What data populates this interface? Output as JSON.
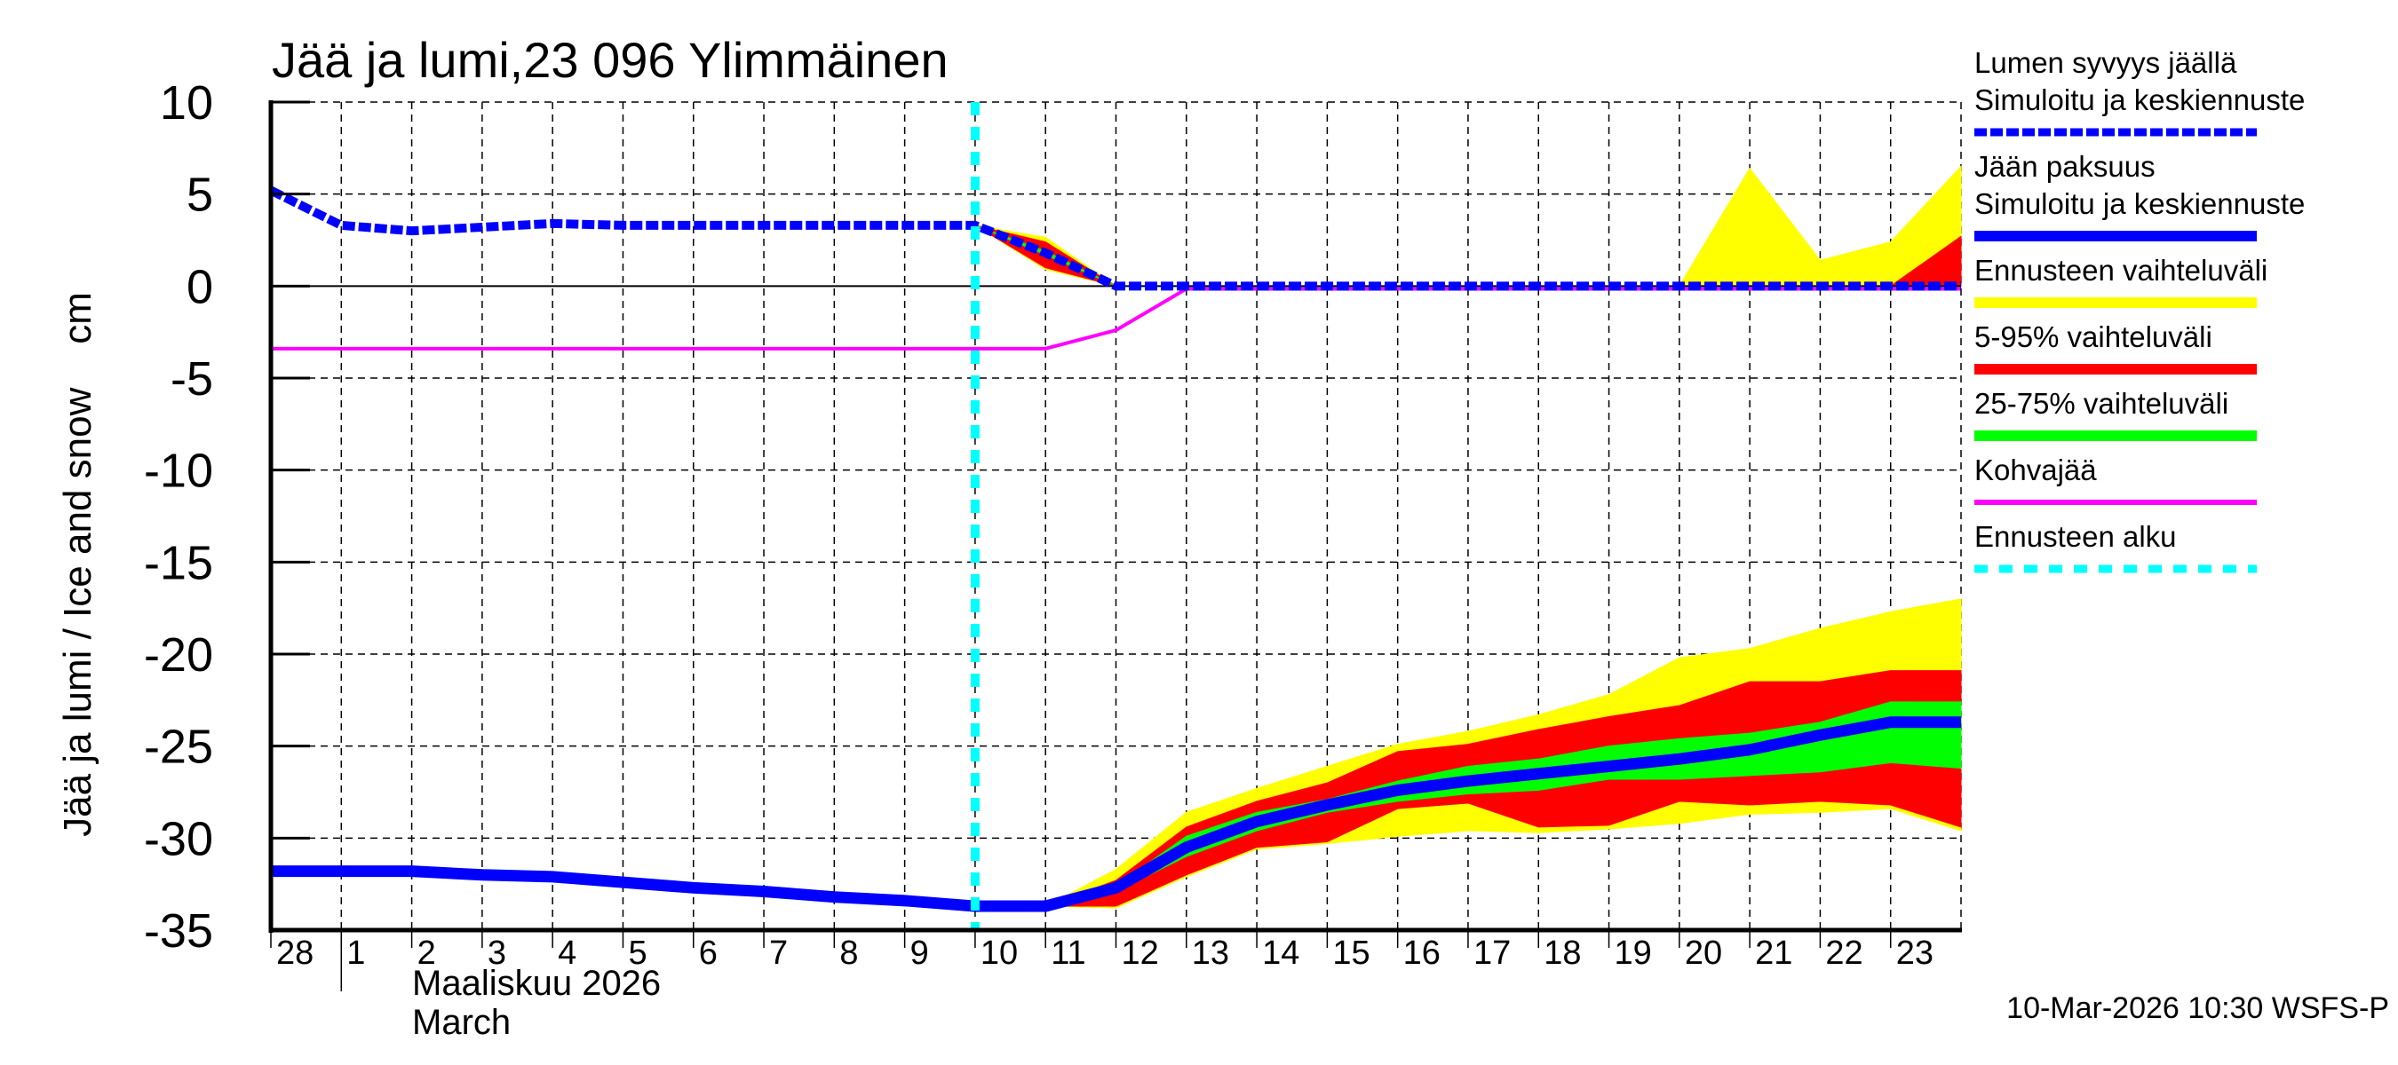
{
  "chart_data": {
    "type": "area",
    "title": "Jää ja lumi,23 096 Ylimmäinen",
    "ylabel": "Jää ja lumi / Ice and snow    cm",
    "xlabel_fi": "Maaliskuu 2026",
    "xlabel_en": "March",
    "ylim": [
      -35,
      10
    ],
    "yticks": [
      10,
      5,
      0,
      -5,
      -10,
      -15,
      -20,
      -25,
      -30,
      -35
    ],
    "x_tick_labels": [
      "28",
      "1",
      "2",
      "3",
      "4",
      "5",
      "6",
      "7",
      "8",
      "9",
      "10",
      "11",
      "12",
      "13",
      "14",
      "15",
      "16",
      "17",
      "18",
      "19",
      "20",
      "21",
      "22",
      "23"
    ],
    "x_day_index_range": [
      0,
      24
    ],
    "grid": true,
    "forecast_start_day_index": 10,
    "legend_position": "right",
    "timestamp": "10-Mar-2026 10:30 WSFS-P",
    "colors": {
      "snow": "#0000ff",
      "ice": "#0000ff",
      "range_full": "#ffff00",
      "range_5_95": "#ff0000",
      "range_25_75": "#00ff00",
      "slush": "#ff00ff",
      "forecast_start": "#00ffff"
    },
    "series": [
      {
        "name": "Lumen syvyys jäällä – Simuloitu ja keskiennuste",
        "style": "dashed-thick",
        "x": [
          0,
          1,
          2,
          3,
          4,
          5,
          6,
          7,
          8,
          9,
          10,
          11,
          12,
          13,
          14,
          15,
          16,
          17,
          18,
          19,
          20,
          21,
          22,
          23,
          24
        ],
        "values": [
          5.2,
          3.3,
          3.0,
          3.2,
          3.4,
          3.3,
          3.3,
          3.3,
          3.3,
          3.3,
          3.3,
          1.8,
          0,
          0,
          0,
          0,
          0,
          0,
          0,
          0,
          0,
          0,
          0,
          0,
          0
        ]
      },
      {
        "name": "Jään paksuus – Simuloitu ja keskiennuste",
        "style": "solid-thick",
        "x": [
          0,
          1,
          2,
          3,
          4,
          5,
          6,
          7,
          8,
          9,
          10,
          11,
          12,
          13,
          14,
          15,
          16,
          17,
          18,
          19,
          20,
          21,
          22,
          23,
          24
        ],
        "values": [
          -31.8,
          -31.8,
          -31.8,
          -32.0,
          -32.1,
          -32.4,
          -32.7,
          -32.9,
          -33.2,
          -33.4,
          -33.7,
          -33.7,
          -32.7,
          -30.5,
          -29.1,
          -28.2,
          -27.4,
          -26.9,
          -26.5,
          -26.1,
          -25.7,
          -25.2,
          -24.4,
          -23.7,
          -23.7
        ]
      },
      {
        "name": "Kohvajää",
        "style": "solid",
        "x": [
          0,
          10,
          11,
          12,
          13,
          24
        ],
        "values": [
          -3.4,
          -3.4,
          -3.4,
          -2.4,
          -0.15,
          -0.15
        ]
      }
    ],
    "bands": {
      "snow": {
        "x": [
          10,
          11,
          12,
          13,
          19,
          20,
          21,
          22,
          23,
          24
        ],
        "full_lower": [
          3.3,
          0.9,
          0,
          0,
          0,
          0,
          0,
          0,
          0,
          0
        ],
        "full_upper": [
          3.3,
          2.65,
          0,
          0,
          0,
          0,
          6.4,
          1.4,
          2.4,
          6.5
        ],
        "p5_lower": [
          3.3,
          1.0,
          0,
          0,
          0,
          0,
          0,
          0,
          0,
          0
        ],
        "p95_upper": [
          3.3,
          2.4,
          0,
          0,
          0,
          0,
          0,
          0,
          0,
          2.7
        ],
        "p25_lower": [
          3.3,
          1.7,
          0,
          0,
          0,
          0,
          0,
          0,
          0,
          0
        ],
        "p75_upper": [
          3.3,
          1.9,
          0,
          0,
          0,
          0,
          0,
          0,
          0,
          0
        ]
      },
      "ice": {
        "x": [
          11,
          12,
          13,
          14,
          15,
          16,
          17,
          18,
          19,
          20,
          21,
          22,
          23,
          24
        ],
        "full_upper": [
          -33.7,
          -31.7,
          -28.6,
          -27.3,
          -26.1,
          -24.9,
          -24.2,
          -23.3,
          -22.2,
          -20.2,
          -19.7,
          -18.6,
          -17.7,
          -17.0
        ],
        "p95_upper": [
          -33.7,
          -32.3,
          -29.4,
          -28.0,
          -27.0,
          -25.3,
          -24.9,
          -24.1,
          -23.4,
          -22.8,
          -21.5,
          -21.5,
          -20.9,
          -20.9
        ],
        "p75_upper": [
          -33.7,
          -32.6,
          -29.9,
          -28.6,
          -27.9,
          -26.9,
          -26.1,
          -25.7,
          -25.0,
          -24.6,
          -24.3,
          -23.7,
          -22.6,
          -22.6
        ],
        "p25_lower": [
          -33.7,
          -32.9,
          -31.0,
          -29.6,
          -28.6,
          -28.0,
          -27.6,
          -27.4,
          -26.8,
          -26.8,
          -26.6,
          -26.4,
          -25.9,
          -26.2
        ],
        "p5_lower": [
          -33.7,
          -33.7,
          -32.0,
          -30.5,
          -30.2,
          -28.4,
          -28.1,
          -29.4,
          -29.3,
          -28.0,
          -28.2,
          -28.0,
          -28.2,
          -29.4
        ],
        "full_lower": [
          -33.7,
          -33.8,
          -32.1,
          -30.6,
          -30.3,
          -29.9,
          -29.6,
          -29.7,
          -29.5,
          -29.2,
          -28.7,
          -28.6,
          -28.4,
          -29.6
        ]
      }
    }
  },
  "legend": {
    "items": [
      {
        "line1": "Lumen syvyys jäällä",
        "line2": "Simuloitu ja keskiennuste",
        "color": "#0000ff",
        "style": "dashed"
      },
      {
        "line1": "Jään paksuus",
        "line2": "Simuloitu ja keskiennuste",
        "color": "#0000ff",
        "style": "solid"
      },
      {
        "line1": "Ennusteen vaihteluväli",
        "line2": "",
        "color": "#ffff00",
        "style": "solid"
      },
      {
        "line1": "5-95% vaihteluväli",
        "line2": "",
        "color": "#ff0000",
        "style": "solid"
      },
      {
        "line1": "25-75% vaihteluväli",
        "line2": "",
        "color": "#00ff00",
        "style": "solid"
      },
      {
        "line1": "Kohvajää",
        "line2": "",
        "color": "#ff00ff",
        "style": "thin"
      },
      {
        "line1": "Ennusteen alku",
        "line2": "",
        "color": "#00ffff",
        "style": "dotted"
      }
    ]
  }
}
